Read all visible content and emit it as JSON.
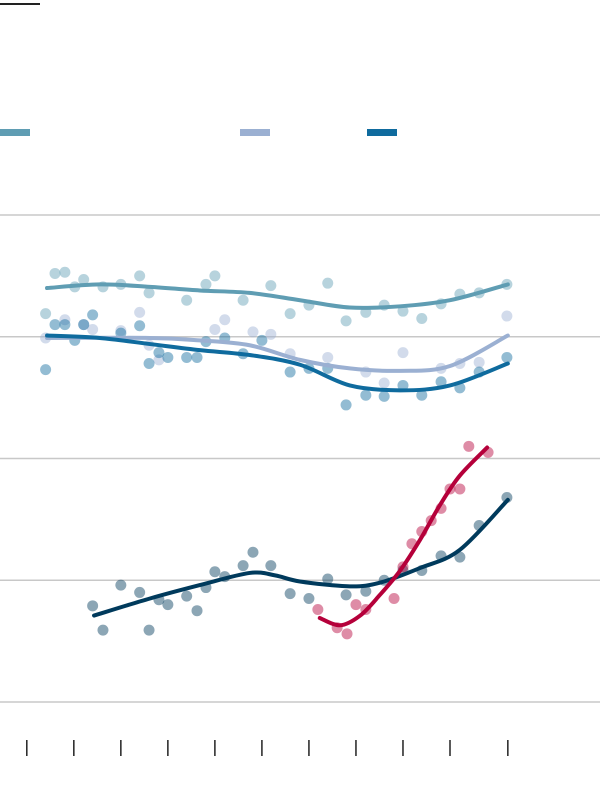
{
  "chart_data": {
    "type": "scatter",
    "xlim": [
      -0.57,
      12.19
    ],
    "ylim": [
      0,
      4
    ],
    "xticks": [
      0,
      1,
      2,
      3,
      4,
      5,
      6,
      7,
      8,
      9,
      10.23
    ],
    "yticks": [
      0,
      1,
      2,
      3,
      4
    ],
    "grid": true,
    "series": [
      {
        "color": "#5f9db3",
        "in_legend": true,
        "x": [
          0.4,
          0.6,
          0.81,
          1.02,
          1.21,
          1.62,
          2.0,
          2.4,
          2.6,
          3.4,
          3.81,
          4.0,
          4.6,
          5.19,
          5.6,
          6.0,
          6.4,
          6.79,
          7.21,
          7.6,
          8.0,
          8.4,
          8.81,
          9.21,
          9.62,
          10.21
        ],
        "values": [
          3.19,
          3.52,
          3.53,
          3.41,
          3.47,
          3.41,
          3.43,
          3.5,
          3.36,
          3.3,
          3.43,
          3.5,
          3.3,
          3.42,
          3.19,
          3.26,
          3.44,
          3.13,
          3.2,
          3.26,
          3.21,
          3.15,
          3.27,
          3.35,
          3.36,
          3.43
        ],
        "trend_x": [
          0.43,
          1.55,
          2.62,
          3.68,
          4.74,
          5.81,
          6.87,
          7.94,
          9.0,
          10.23
        ],
        "trend_values": [
          3.4,
          3.43,
          3.41,
          3.38,
          3.36,
          3.3,
          3.24,
          3.25,
          3.3,
          3.43
        ]
      },
      {
        "color": "#9bb0d2",
        "in_legend": true,
        "x": [
          0.4,
          0.81,
          1.21,
          1.4,
          2.0,
          2.4,
          2.6,
          2.81,
          4.0,
          4.21,
          4.81,
          5.19,
          5.6,
          6.4,
          7.21,
          7.6,
          8.0,
          8.81,
          9.21,
          9.62,
          10.21
        ],
        "values": [
          2.99,
          3.14,
          3.1,
          3.06,
          3.05,
          3.2,
          2.93,
          2.81,
          3.06,
          3.14,
          3.04,
          3.02,
          2.86,
          2.83,
          2.71,
          2.62,
          2.87,
          2.74,
          2.78,
          2.79,
          3.17
        ],
        "trend_x": [
          0.43,
          2.62,
          3.68,
          4.74,
          5.81,
          6.87,
          7.94,
          9.0,
          10.23
        ],
        "trend_values": [
          2.99,
          2.99,
          2.97,
          2.93,
          2.81,
          2.74,
          2.72,
          2.76,
          3.01
        ]
      },
      {
        "color": "#0f6b9e",
        "in_legend": true,
        "x": [
          0.4,
          0.6,
          0.81,
          1.02,
          1.21,
          1.4,
          2.0,
          2.4,
          2.6,
          2.81,
          3.0,
          3.4,
          3.62,
          3.81,
          4.21,
          4.6,
          5.0,
          5.6,
          6.0,
          6.4,
          6.79,
          7.21,
          7.6,
          8.0,
          8.4,
          8.81,
          9.21,
          9.62,
          10.21
        ],
        "values": [
          2.73,
          3.1,
          3.1,
          2.97,
          3.1,
          3.18,
          3.03,
          3.09,
          2.78,
          2.87,
          2.83,
          2.83,
          2.83,
          2.96,
          2.99,
          2.86,
          2.97,
          2.71,
          2.74,
          2.74,
          2.44,
          2.52,
          2.51,
          2.6,
          2.52,
          2.63,
          2.58,
          2.71,
          2.83
        ],
        "trend_x": [
          0.43,
          1.55,
          2.62,
          3.68,
          4.74,
          5.81,
          6.87,
          7.94,
          9.0,
          10.23
        ],
        "trend_values": [
          3.01,
          2.99,
          2.94,
          2.89,
          2.85,
          2.77,
          2.6,
          2.56,
          2.6,
          2.78
        ]
      },
      {
        "color": "#003a5c",
        "in_legend": false,
        "x": [
          1.4,
          1.62,
          2.0,
          2.4,
          2.6,
          2.81,
          3.0,
          3.4,
          3.62,
          3.81,
          4.0,
          4.21,
          4.6,
          4.81,
          5.19,
          5.6,
          6.0,
          6.4,
          6.79,
          7.21,
          7.6,
          8.0,
          8.4,
          8.81,
          9.21,
          9.62,
          10.21
        ],
        "values": [
          0.79,
          0.59,
          0.96,
          0.9,
          0.59,
          0.84,
          0.8,
          0.87,
          0.75,
          0.94,
          1.07,
          1.03,
          1.12,
          1.23,
          1.12,
          0.89,
          0.85,
          1.01,
          0.88,
          0.91,
          1.0,
          1.08,
          1.08,
          1.2,
          1.19,
          1.45,
          1.68
        ],
        "trend_x": [
          1.43,
          2.62,
          3.68,
          4.74,
          5.28,
          5.81,
          6.87,
          7.51,
          8.36,
          9.21,
          10.23
        ],
        "trend_values": [
          0.71,
          0.85,
          0.96,
          1.06,
          1.04,
          0.99,
          0.95,
          0.98,
          1.1,
          1.25,
          1.66
        ]
      },
      {
        "color": "#b5003a",
        "in_legend": false,
        "x": [
          6.19,
          6.6,
          6.81,
          7.0,
          7.21,
          7.81,
          8.0,
          8.19,
          8.4,
          8.6,
          8.81,
          9.0,
          9.21,
          9.4,
          9.81
        ],
        "values": [
          0.76,
          0.61,
          0.56,
          0.8,
          0.76,
          0.85,
          1.11,
          1.3,
          1.4,
          1.49,
          1.59,
          1.75,
          1.75,
          2.1,
          2.05
        ],
        "trend_x": [
          6.23,
          6.66,
          7.09,
          7.51,
          7.94,
          8.36,
          8.79,
          9.21,
          9.79
        ],
        "trend_values": [
          0.69,
          0.63,
          0.71,
          0.88,
          1.08,
          1.33,
          1.62,
          1.86,
          2.09
        ]
      }
    ]
  }
}
